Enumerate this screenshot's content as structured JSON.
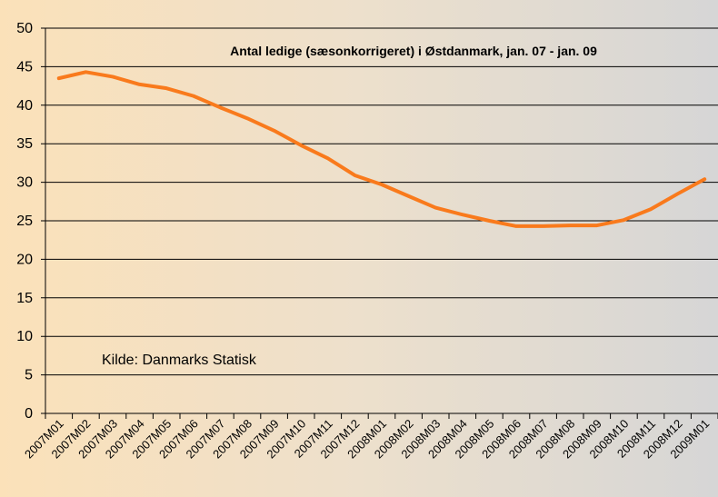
{
  "chart_data": {
    "type": "line",
    "title": "Antal ledige (sæsonkorrigeret) i Østdanmark, jan. 07 - jan. 09",
    "annotation": "Kilde: Danmarks Statisk",
    "categories": [
      "2007M01",
      "2007M02",
      "2007M03",
      "2007M04",
      "2007M05",
      "2007M06",
      "2007M07",
      "2007M08",
      "2007M09",
      "2007M10",
      "2007M11",
      "2007M12",
      "2008M01",
      "2008M02",
      "2008M03",
      "2008M04",
      "2008M05",
      "2008M06",
      "2008M07",
      "2008M08",
      "2008M09",
      "2008M10",
      "2008M11",
      "2008M12",
      "2009M01"
    ],
    "series": [
      {
        "name": "Antal ledige",
        "color": "#f97a1c",
        "values": [
          43.5,
          44.3,
          43.7,
          42.7,
          42.2,
          41.2,
          39.7,
          38.3,
          36.7,
          34.8,
          33.1,
          30.9,
          29.7,
          28.2,
          26.7,
          25.8,
          25.0,
          24.3,
          24.3,
          24.4,
          24.4,
          25.1,
          26.5,
          28.5,
          30.4
        ]
      }
    ],
    "ylim": [
      0,
      50
    ],
    "yticks": [
      0,
      5,
      10,
      15,
      20,
      25,
      30,
      35,
      40,
      45,
      50
    ],
    "grid": true
  }
}
